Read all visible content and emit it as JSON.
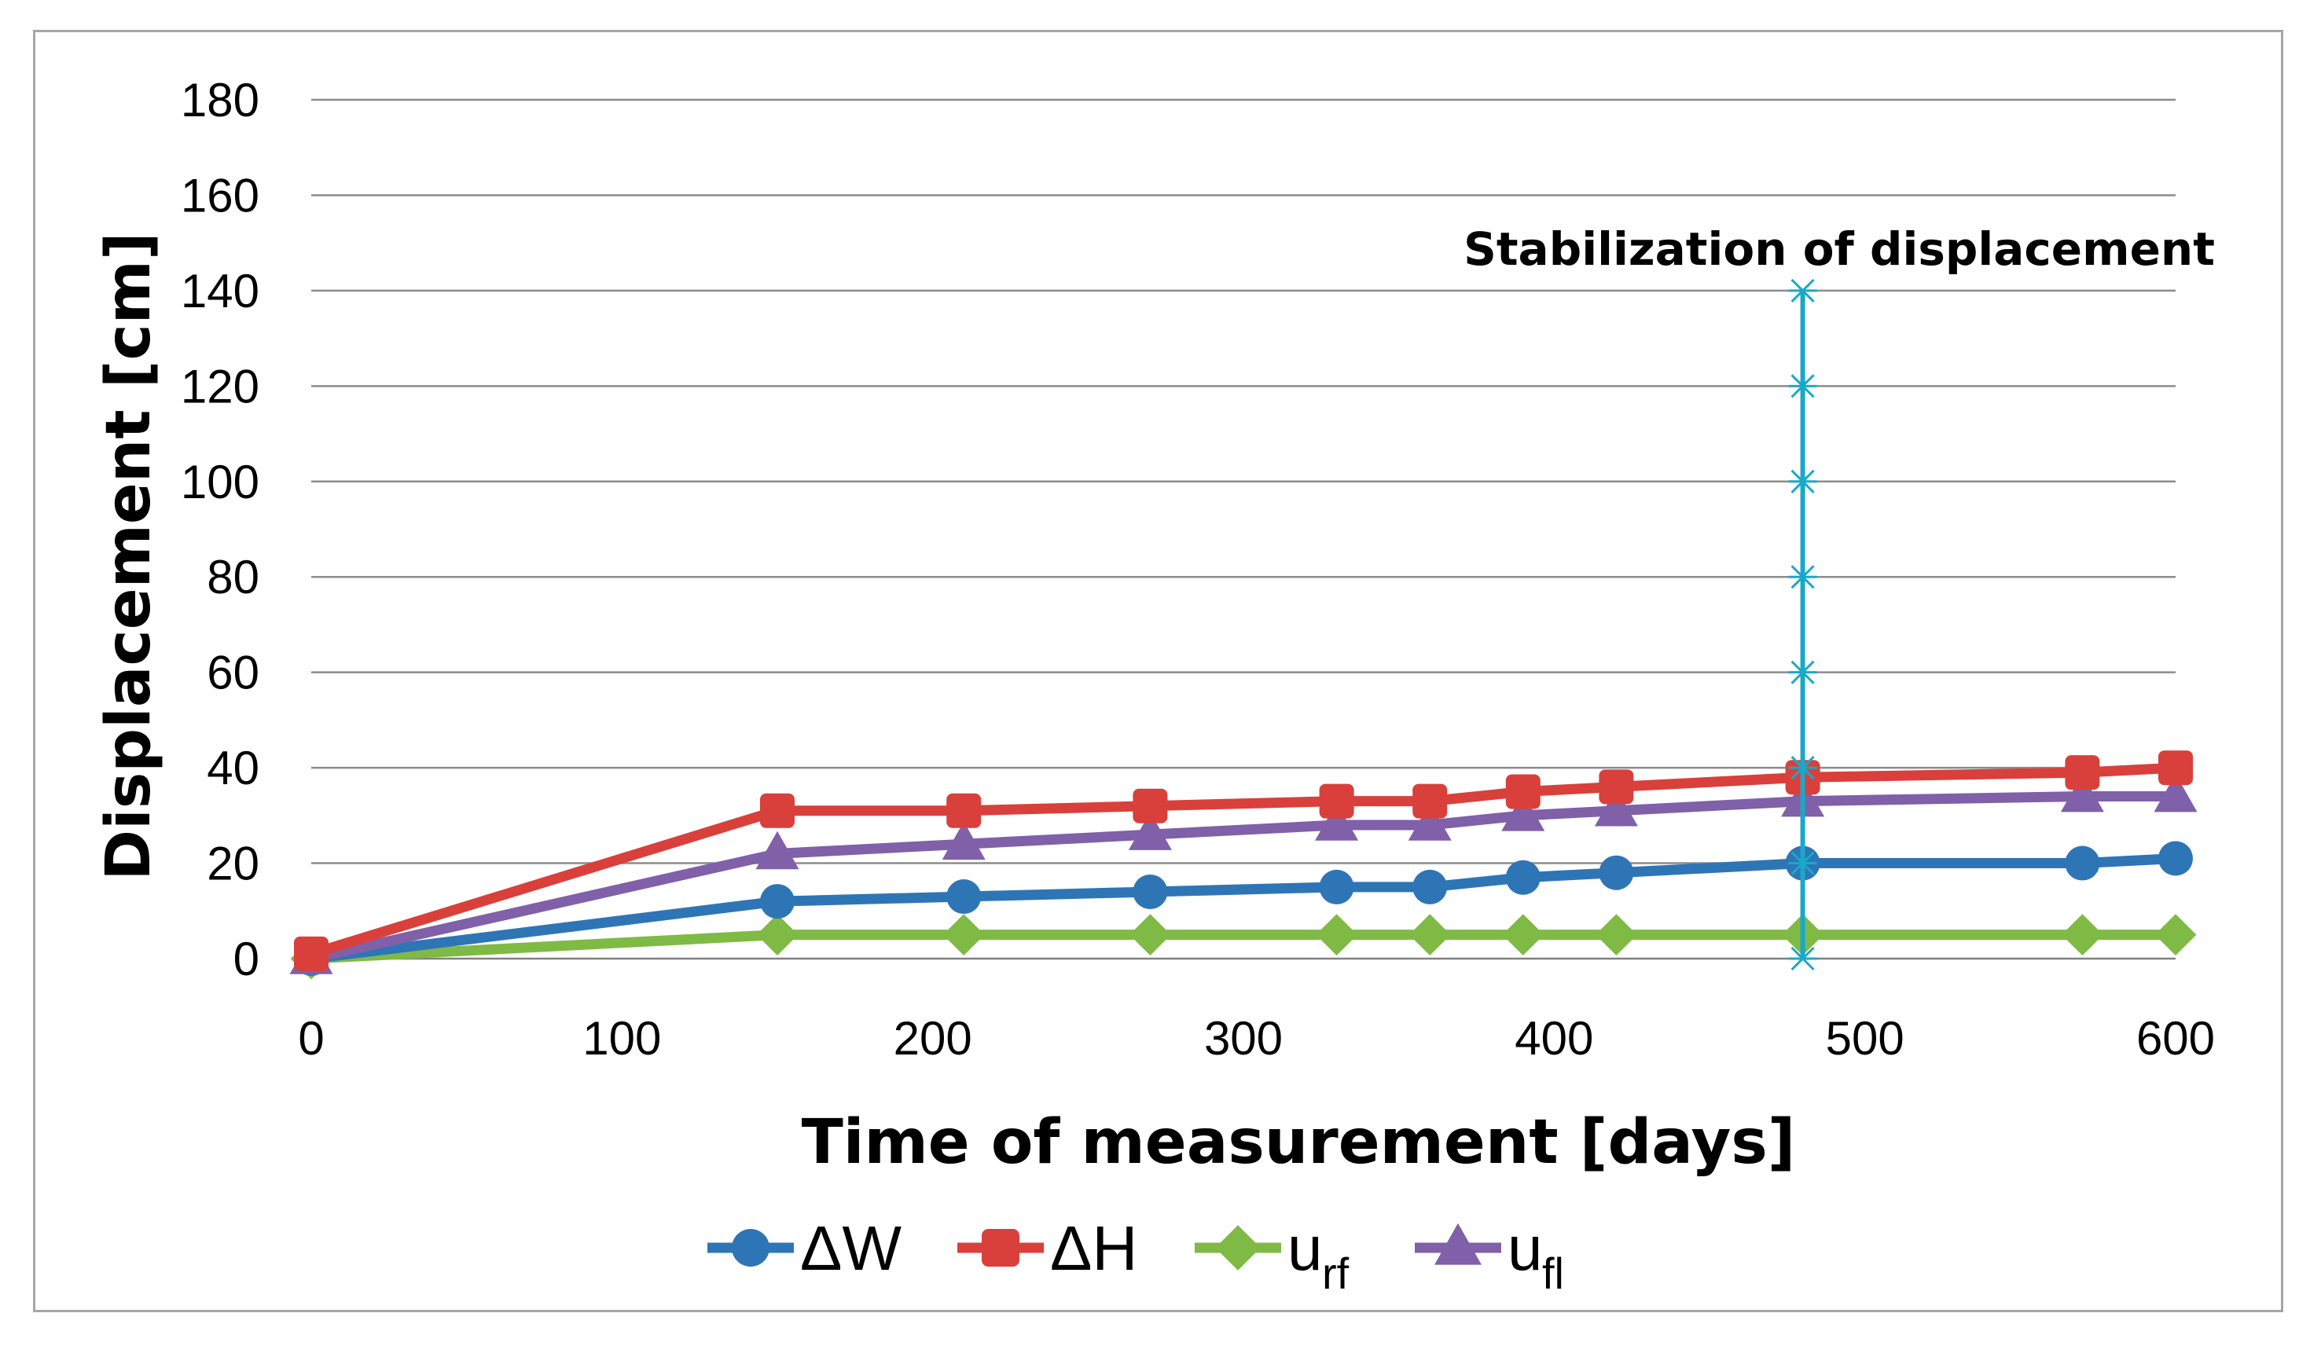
{
  "chart_data": {
    "type": "line",
    "title": "",
    "xlabel": "Time of measurement [days]",
    "ylabel": "Displacement [cm]",
    "xlim": [
      0,
      600
    ],
    "ylim": [
      0,
      180
    ],
    "xticks": [
      "0",
      "100",
      "200",
      "300",
      "400",
      "500",
      "600"
    ],
    "yticks": [
      "0",
      "20",
      "40",
      "60",
      "80",
      "100",
      "120",
      "140",
      "160",
      "180"
    ],
    "grid": "horizontal",
    "legend_position": "bottom",
    "x": [
      0,
      150,
      210,
      270,
      330,
      360,
      390,
      420,
      480,
      570,
      600
    ],
    "series": [
      {
        "name": "ΔW",
        "label_main": "ΔW",
        "label_sub": "",
        "color": "#2e75b6",
        "marker": "circle",
        "values": [
          0,
          12,
          13,
          14,
          15,
          15,
          17,
          18,
          20,
          20,
          21
        ]
      },
      {
        "name": "ΔH",
        "label_main": "ΔH",
        "label_sub": "",
        "color": "#d9403b",
        "marker": "square",
        "values": [
          1,
          31,
          31,
          32,
          33,
          33,
          35,
          36,
          38,
          39,
          40
        ]
      },
      {
        "name": "urf",
        "label_main": "u",
        "label_sub": "rf",
        "color": "#7fba45",
        "marker": "diamond",
        "values": [
          0,
          5,
          5,
          5,
          5,
          5,
          5,
          5,
          5,
          5,
          5
        ]
      },
      {
        "name": "ufl",
        "label_main": "u",
        "label_sub": "fl",
        "color": "#8060a8",
        "marker": "triangle",
        "values": [
          0,
          22,
          24,
          26,
          28,
          28,
          30,
          31,
          33,
          34,
          34
        ]
      }
    ],
    "annotation": {
      "text": "Stabilization of displacement",
      "x": 480,
      "y_start": 0,
      "y_end": 140,
      "marker_y": [
        0,
        20,
        40,
        60,
        80,
        100,
        120,
        140
      ],
      "color": "#1aa8c9"
    }
  }
}
